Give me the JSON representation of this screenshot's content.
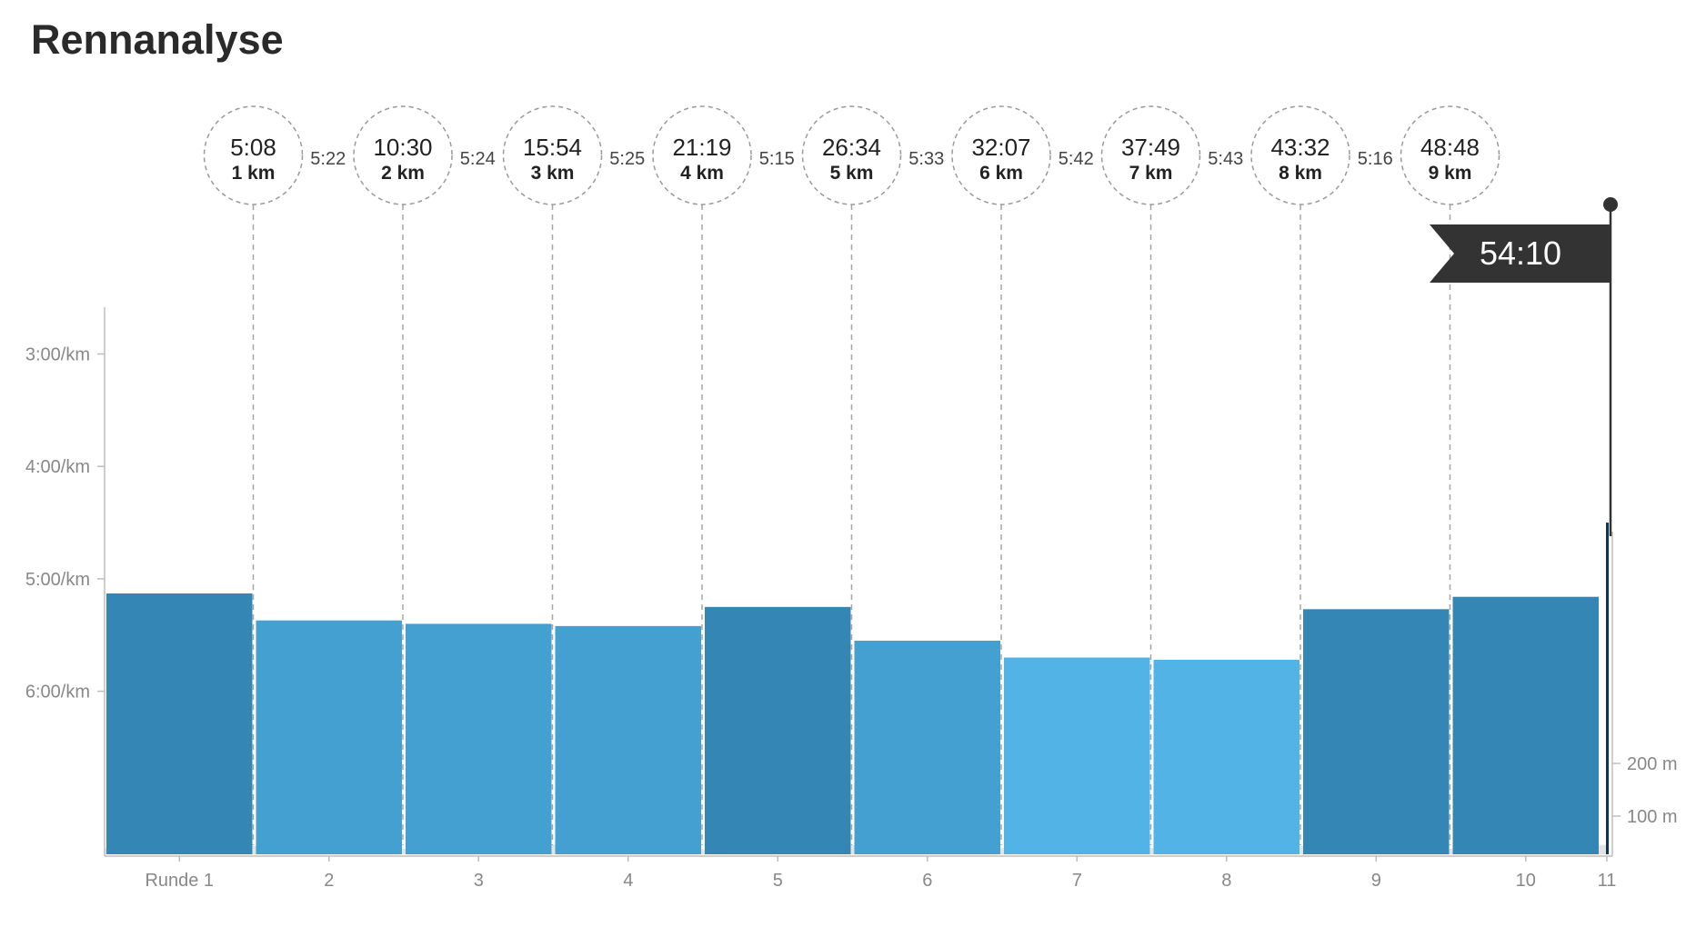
{
  "page": {
    "title": "Rennanalyse"
  },
  "chart_data": {
    "type": "bar",
    "title": "Rennanalyse",
    "categories": [
      "Runde 1",
      "2",
      "3",
      "4",
      "5",
      "6",
      "7",
      "8",
      "9",
      "10",
      "11"
    ],
    "series": [
      {
        "values": [
          5.13,
          5.37,
          5.4,
          5.42,
          5.25,
          5.55,
          5.7,
          5.72,
          5.27,
          5.16,
          4.5
        ]
      }
    ],
    "y_axis": {
      "ticks": [
        "3:00/km",
        "4:00/km",
        "5:00/km",
        "6:00/km"
      ],
      "tick_values": [
        3,
        4,
        5,
        6
      ],
      "ylim": [
        2.6,
        7.45
      ],
      "inverted": true
    },
    "secondary_axis": {
      "ticks": [
        "200 m",
        "100 m"
      ]
    },
    "splits": [
      {
        "time": "5:08",
        "distance": "1 km"
      },
      {
        "time": "10:30",
        "distance": "2 km"
      },
      {
        "time": "15:54",
        "distance": "3 km"
      },
      {
        "time": "21:19",
        "distance": "4 km"
      },
      {
        "time": "26:34",
        "distance": "5 km"
      },
      {
        "time": "32:07",
        "distance": "6 km"
      },
      {
        "time": "37:49",
        "distance": "7 km"
      },
      {
        "time": "43:32",
        "distance": "8 km"
      },
      {
        "time": "48:48",
        "distance": "9 km"
      }
    ],
    "split_paces": [
      "5:22",
      "5:24",
      "5:25",
      "5:15",
      "5:33",
      "5:42",
      "5:43",
      "5:16"
    ],
    "finish_time": "54:10",
    "colors": {
      "bar_dark": "#3486b5",
      "bar_mid": "#43a0d0",
      "bar_light": "#52b3e6",
      "last_bar": "#0f3550",
      "flag": "#333333",
      "elevation": "#e3e3e3"
    }
  }
}
